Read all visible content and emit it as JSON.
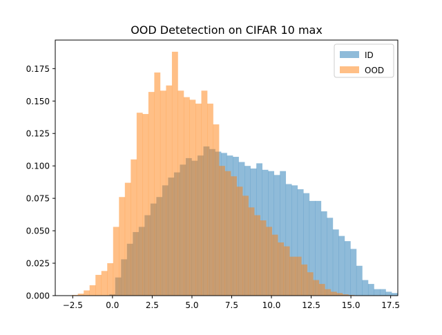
{
  "chart_data": {
    "type": "bar",
    "title": "OOD Detetection on CIFAR 10 max",
    "xlabel": "",
    "ylabel": "",
    "xlim": [
      -3.6,
      17.95
    ],
    "ylim": [
      0,
      0.197
    ],
    "xticks": [
      -2.5,
      0.0,
      2.5,
      5.0,
      7.5,
      10.0,
      12.5,
      15.0,
      17.5
    ],
    "xtick_labels": [
      "−2.5",
      "0.0",
      "2.5",
      "5.0",
      "7.5",
      "10.0",
      "12.5",
      "15.0",
      "17.5"
    ],
    "yticks": [
      0.0,
      0.025,
      0.05,
      0.075,
      0.1,
      0.125,
      0.15,
      0.175
    ],
    "ytick_labels": [
      "0.000",
      "0.025",
      "0.050",
      "0.075",
      "0.100",
      "0.125",
      "0.150",
      "0.175"
    ],
    "legend_position": "top-right",
    "grid": false,
    "series": [
      {
        "name": "ID",
        "color": "#1f77b4",
        "alpha": 0.5,
        "bin_start": -0.2,
        "bin_width": 0.37,
        "values": [
          0.001,
          0.014,
          0.028,
          0.04,
          0.049,
          0.053,
          0.062,
          0.071,
          0.076,
          0.085,
          0.091,
          0.095,
          0.101,
          0.106,
          0.104,
          0.108,
          0.115,
          0.113,
          0.111,
          0.11,
          0.108,
          0.107,
          0.103,
          0.1,
          0.098,
          0.102,
          0.097,
          0.096,
          0.093,
          0.096,
          0.086,
          0.085,
          0.082,
          0.079,
          0.073,
          0.073,
          0.065,
          0.06,
          0.051,
          0.046,
          0.042,
          0.036,
          0.023,
          0.012,
          0.009,
          0.005,
          0.005,
          0.003,
          0.002,
          0.001,
          0.0005
        ]
      },
      {
        "name": "OOD",
        "color": "#ff7f0e",
        "alpha": 0.5,
        "bin_start": -2.55,
        "bin_width": 0.37,
        "values": [
          0.0005,
          0.0015,
          0.004,
          0.008,
          0.016,
          0.019,
          0.025,
          0.053,
          0.076,
          0.087,
          0.105,
          0.141,
          0.14,
          0.157,
          0.172,
          0.158,
          0.162,
          0.188,
          0.158,
          0.153,
          0.151,
          0.148,
          0.158,
          0.148,
          0.132,
          0.1,
          0.096,
          0.092,
          0.084,
          0.077,
          0.068,
          0.062,
          0.058,
          0.053,
          0.047,
          0.041,
          0.038,
          0.03,
          0.03,
          0.024,
          0.018,
          0.012,
          0.009,
          0.005,
          0.003,
          0.002,
          0.001,
          0.0005
        ]
      }
    ]
  }
}
